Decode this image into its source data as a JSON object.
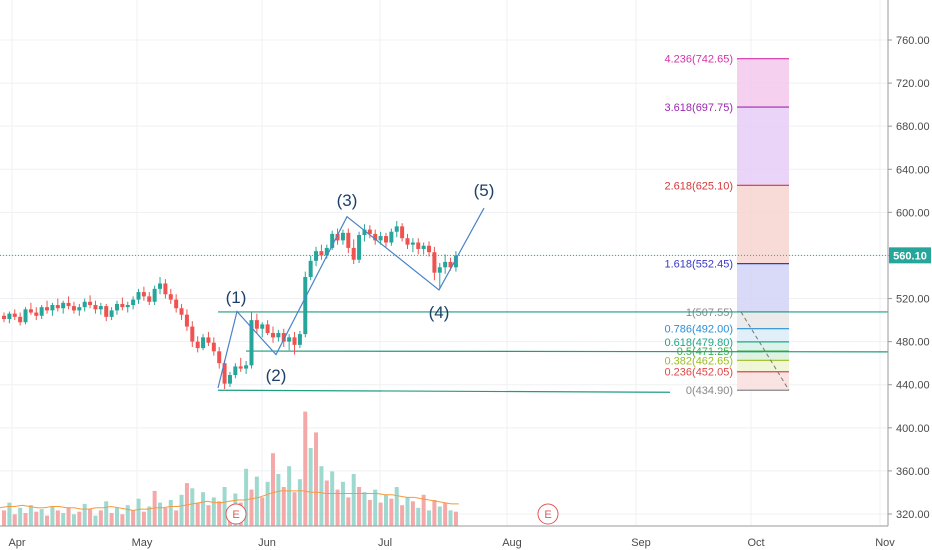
{
  "chart_data": {
    "type": "candlestick",
    "price_axis": {
      "ticks": [
        "760.00",
        "720.00",
        "680.00",
        "640.00",
        "600.00",
        "560.00",
        "520.00",
        "480.00",
        "440.00",
        "400.00",
        "360.00",
        "320.00"
      ],
      "range": [
        310,
        805
      ]
    },
    "time_axis": {
      "ticks": [
        "Apr",
        "May",
        "Jun",
        "Jul",
        "Aug",
        "Sep",
        "Oct",
        "Nov"
      ]
    },
    "last_price": "560.10",
    "candles": [
      [
        504,
        507,
        498,
        501
      ],
      [
        501,
        508,
        497,
        506
      ],
      [
        506,
        510,
        500,
        503
      ],
      [
        503,
        507,
        495,
        498
      ],
      [
        498,
        512,
        496,
        510
      ],
      [
        510,
        516,
        505,
        507
      ],
      [
        507,
        512,
        500,
        504
      ],
      [
        504,
        514,
        501,
        512
      ],
      [
        512,
        518,
        506,
        509
      ],
      [
        509,
        516,
        504,
        514
      ],
      [
        514,
        520,
        508,
        511
      ],
      [
        511,
        518,
        506,
        516
      ],
      [
        516,
        522,
        510,
        513
      ],
      [
        513,
        517,
        506,
        509
      ],
      [
        509,
        515,
        504,
        512
      ],
      [
        512,
        520,
        508,
        517
      ],
      [
        517,
        523,
        511,
        514
      ],
      [
        514,
        518,
        506,
        510
      ],
      [
        510,
        516,
        505,
        513
      ],
      [
        513,
        515,
        499,
        503
      ],
      [
        503,
        512,
        500,
        509
      ],
      [
        509,
        518,
        505,
        515
      ],
      [
        515,
        521,
        509,
        512
      ],
      [
        512,
        517,
        507,
        514
      ],
      [
        514,
        522,
        510,
        519
      ],
      [
        519,
        529,
        515,
        526
      ],
      [
        526,
        531,
        518,
        522
      ],
      [
        522,
        526,
        514,
        517
      ],
      [
        517,
        532,
        514,
        529
      ],
      [
        529,
        540,
        524,
        534
      ],
      [
        534,
        538,
        520,
        524
      ],
      [
        524,
        529,
        515,
        519
      ],
      [
        519,
        524,
        507,
        511
      ],
      [
        511,
        515,
        500,
        505
      ],
      [
        505,
        510,
        490,
        494
      ],
      [
        494,
        499,
        475,
        480
      ],
      [
        480,
        485,
        470,
        474
      ],
      [
        474,
        487,
        472,
        484
      ],
      [
        484,
        489,
        476,
        479
      ],
      [
        479,
        484,
        467,
        471
      ],
      [
        471,
        475,
        455,
        460
      ],
      [
        460,
        463,
        436,
        441
      ],
      [
        441,
        452,
        438,
        449
      ],
      [
        449,
        460,
        446,
        457
      ],
      [
        457,
        465,
        452,
        455
      ],
      [
        455,
        462,
        450,
        458
      ],
      [
        458,
        507,
        455,
        500
      ],
      [
        500,
        506,
        488,
        492
      ],
      [
        492,
        498,
        484,
        496
      ],
      [
        496,
        500,
        486,
        488
      ],
      [
        488,
        494,
        479,
        484
      ],
      [
        484,
        491,
        480,
        488
      ],
      [
        488,
        492,
        475,
        480
      ],
      [
        480,
        487,
        472,
        484
      ],
      [
        484,
        489,
        468,
        477
      ],
      [
        477,
        490,
        474,
        487
      ],
      [
        487,
        545,
        484,
        540
      ],
      [
        540,
        560,
        537,
        555
      ],
      [
        555,
        568,
        550,
        564
      ],
      [
        564,
        570,
        556,
        560
      ],
      [
        560,
        570,
        557,
        567
      ],
      [
        567,
        583,
        565,
        580
      ],
      [
        580,
        585,
        570,
        574
      ],
      [
        574,
        584,
        570,
        581
      ],
      [
        581,
        585,
        562,
        567
      ],
      [
        567,
        575,
        552,
        556
      ],
      [
        556,
        582,
        553,
        579
      ],
      [
        579,
        589,
        573,
        584
      ],
      [
        584,
        588,
        576,
        580
      ],
      [
        580,
        584,
        570,
        574
      ],
      [
        574,
        582,
        570,
        578
      ],
      [
        578,
        581,
        568,
        572
      ],
      [
        572,
        585,
        569,
        582
      ],
      [
        582,
        592,
        577,
        587
      ],
      [
        587,
        590,
        573,
        576
      ],
      [
        576,
        580,
        566,
        570
      ],
      [
        570,
        576,
        563,
        572
      ],
      [
        572,
        576,
        561,
        566
      ],
      [
        566,
        572,
        561,
        569
      ],
      [
        569,
        573,
        559,
        563
      ],
      [
        563,
        568,
        537,
        544
      ],
      [
        544,
        553,
        529,
        549
      ],
      [
        549,
        561,
        543,
        554
      ],
      [
        554,
        558,
        546,
        549
      ],
      [
        549,
        564,
        545,
        560
      ]
    ],
    "volume_scale_max": 100,
    "volumes": [
      [
        12,
        0
      ],
      [
        18,
        1
      ],
      [
        9,
        0
      ],
      [
        14,
        1
      ],
      [
        10,
        0
      ],
      [
        16,
        1
      ],
      [
        11,
        0
      ],
      [
        13,
        1
      ],
      [
        8,
        0
      ],
      [
        15,
        1
      ],
      [
        12,
        0
      ],
      [
        10,
        1
      ],
      [
        14,
        0
      ],
      [
        9,
        1
      ],
      [
        11,
        0
      ],
      [
        17,
        1
      ],
      [
        13,
        0
      ],
      [
        8,
        1
      ],
      [
        12,
        0
      ],
      [
        19,
        1
      ],
      [
        10,
        0
      ],
      [
        14,
        1
      ],
      [
        9,
        0
      ],
      [
        16,
        1
      ],
      [
        12,
        0
      ],
      [
        21,
        1
      ],
      [
        11,
        0
      ],
      [
        15,
        1
      ],
      [
        27,
        0
      ],
      [
        18,
        1
      ],
      [
        14,
        0
      ],
      [
        20,
        1
      ],
      [
        12,
        0
      ],
      [
        24,
        1
      ],
      [
        33,
        0
      ],
      [
        29,
        1
      ],
      [
        18,
        0
      ],
      [
        26,
        1
      ],
      [
        16,
        0
      ],
      [
        22,
        1
      ],
      [
        19,
        0
      ],
      [
        30,
        1
      ],
      [
        14,
        0
      ],
      [
        25,
        1
      ],
      [
        18,
        0
      ],
      [
        44,
        1
      ],
      [
        28,
        0
      ],
      [
        38,
        1
      ],
      [
        22,
        0
      ],
      [
        34,
        1
      ],
      [
        56,
        0
      ],
      [
        40,
        1
      ],
      [
        30,
        0
      ],
      [
        46,
        1
      ],
      [
        26,
        0
      ],
      [
        36,
        1
      ],
      [
        88,
        0
      ],
      [
        60,
        1
      ],
      [
        72,
        0
      ],
      [
        46,
        1
      ],
      [
        35,
        0
      ],
      [
        42,
        1
      ],
      [
        28,
        0
      ],
      [
        34,
        1
      ],
      [
        22,
        0
      ],
      [
        40,
        1
      ],
      [
        30,
        0
      ],
      [
        26,
        1
      ],
      [
        20,
        0
      ],
      [
        28,
        1
      ],
      [
        18,
        0
      ],
      [
        24,
        1
      ],
      [
        21,
        0
      ],
      [
        30,
        1
      ],
      [
        16,
        0
      ],
      [
        22,
        1
      ],
      [
        19,
        0
      ],
      [
        14,
        1
      ],
      [
        24,
        0
      ],
      [
        12,
        1
      ],
      [
        20,
        0
      ],
      [
        15,
        1
      ],
      [
        18,
        0
      ],
      [
        12,
        1
      ],
      [
        11,
        0
      ]
    ],
    "ma_line": [
      14,
      15,
      15,
      16,
      15,
      14,
      14,
      15,
      15,
      14,
      14,
      13,
      13,
      14,
      14,
      15,
      14,
      13,
      12,
      13,
      13,
      14,
      14,
      15,
      15,
      16,
      17,
      18,
      19,
      18,
      18,
      19,
      20,
      20,
      21,
      22,
      24,
      26,
      27,
      27,
      27,
      27,
      26,
      26,
      25,
      25,
      25,
      25,
      25,
      25,
      25,
      25,
      24,
      24,
      23,
      22,
      22,
      21,
      20,
      19,
      18,
      17,
      17
    ],
    "elliott_labels": [
      "(1)",
      "(2)",
      "(3)",
      "(4)",
      "(5)"
    ],
    "fib_extension": [
      {
        "label": "4.236(742.65)",
        "price": 742.65,
        "color": "#d633a8",
        "fill": "#f4c8ec"
      },
      {
        "label": "3.618(697.75)",
        "price": 697.75,
        "color": "#9c27b0",
        "fill": "#e6cdf7"
      },
      {
        "label": "2.618(625.10)",
        "price": 625.1,
        "color": "#d4383a",
        "fill": "#f7d4cf"
      },
      {
        "label": "1.618(552.45)",
        "price": 552.45,
        "color": "#3838c4",
        "fill": "#d2d4f6"
      },
      {
        "label": "1(507.55)",
        "price": 507.55,
        "color": "#888888",
        "fill": "#e8e8e8"
      },
      {
        "label": "0.786(492.00)",
        "price": 492.0,
        "color": "#2b8fd6",
        "fill": "#dbecf7"
      },
      {
        "label": "0.618(479.80)",
        "price": 479.8,
        "color": "#1fa58a",
        "fill": "#d6f1e9"
      },
      {
        "label": "0.5(471.25)",
        "price": 471.25,
        "color": "#3db04c",
        "fill": "#dbf1db"
      },
      {
        "label": "0.382(462.65)",
        "price": 462.65,
        "color": "#9bbe1e",
        "fill": "#eef4d2"
      },
      {
        "label": "0.236(452.05)",
        "price": 452.05,
        "color": "#e24545",
        "fill": "#f8dede"
      },
      {
        "label": "0(434.90)",
        "price": 434.9,
        "color": "#888888",
        "fill": "#ffffff"
      }
    ],
    "earnings_marker": "E",
    "colors": {
      "up": "#26a69a",
      "down": "#ef5350",
      "up_vol": "#9fd8cf",
      "down_vol": "#f4a8a8",
      "wave": "#4a83c8",
      "ma": "#f59b3e",
      "trend": "#1f9e7e",
      "last_price_bg": "#26a69a"
    }
  }
}
